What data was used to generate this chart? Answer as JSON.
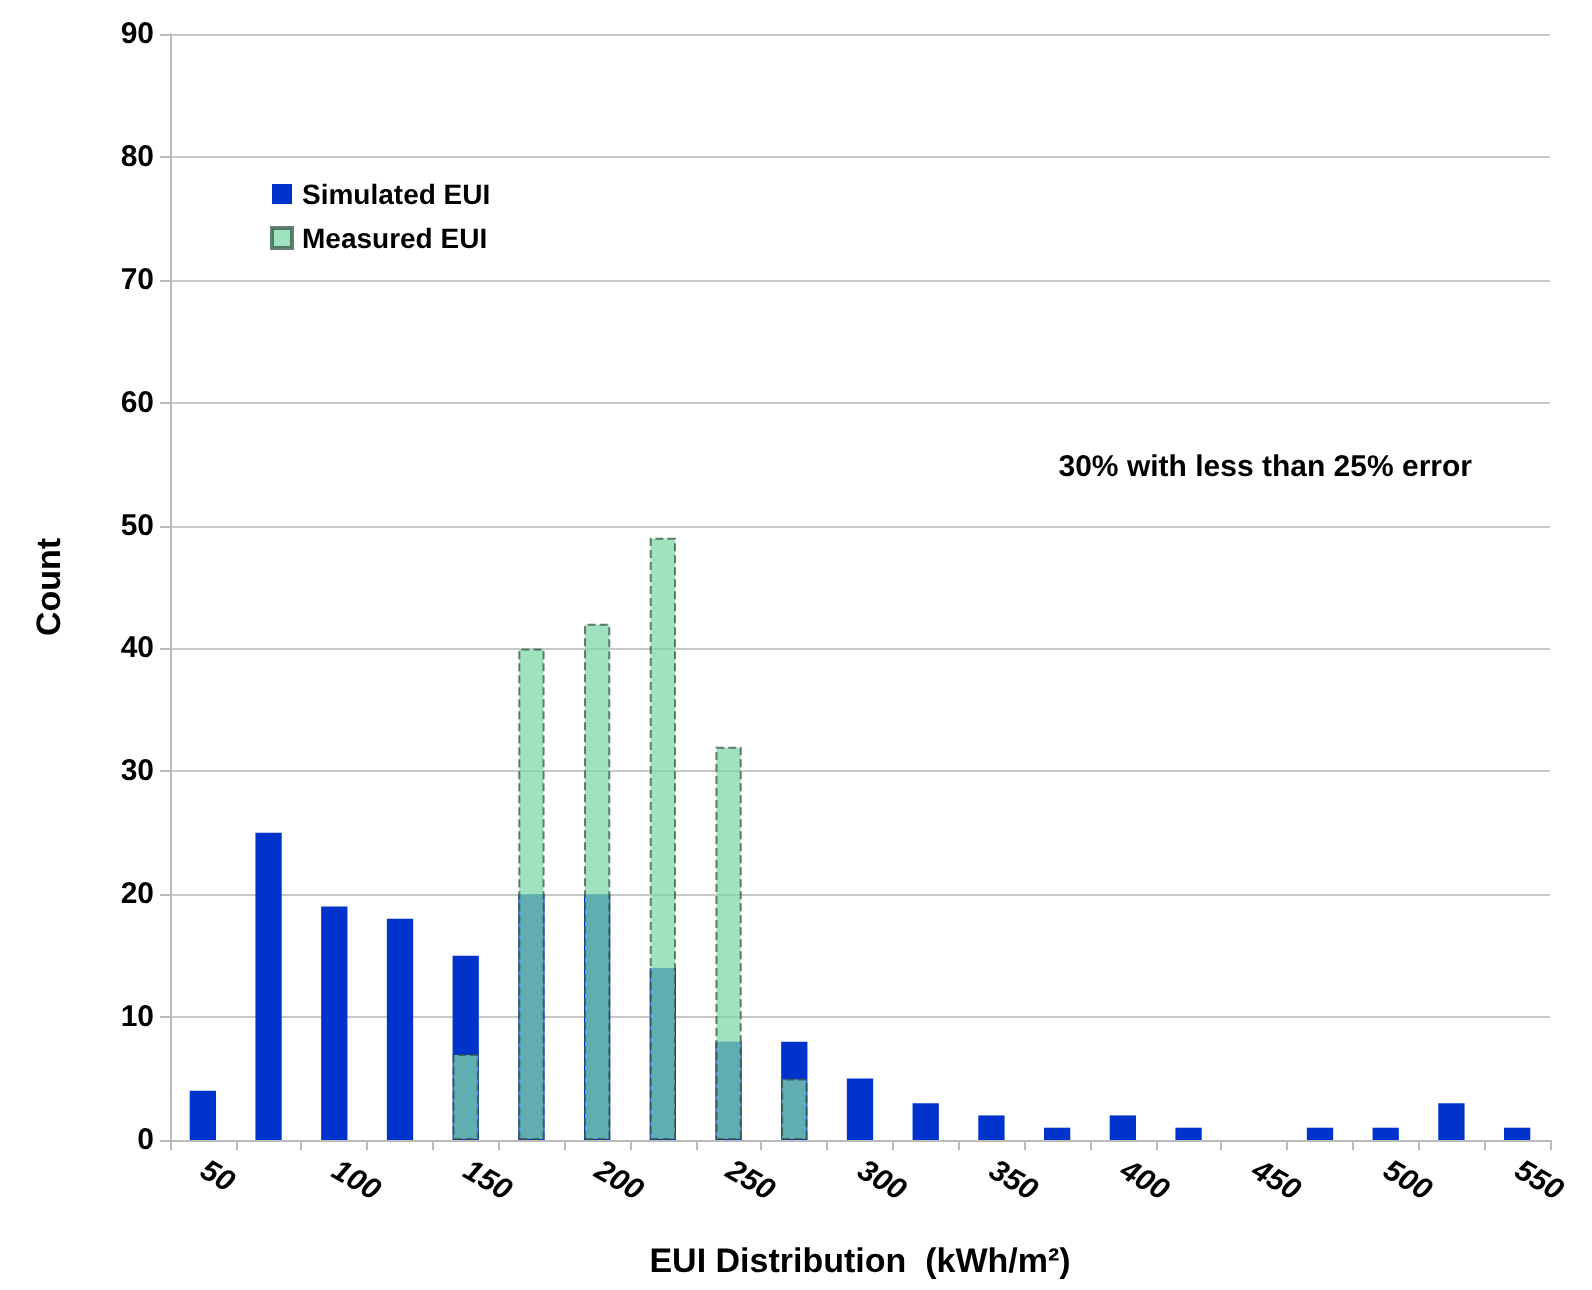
{
  "chart_data": {
    "type": "bar",
    "xlabel": "EUI Distribution  (kWh/m²)",
    "ylabel": "Count",
    "categories": [
      "50",
      null,
      "100",
      null,
      "150",
      null,
      "200",
      null,
      "250",
      null,
      "300",
      null,
      "350",
      null,
      "400",
      null,
      "450",
      null,
      "500",
      null,
      "550"
    ],
    "series": [
      {
        "name": "Simulated EUI",
        "color": "#0033cc",
        "values": [
          4,
          25,
          19,
          18,
          15,
          20,
          20,
          14,
          8,
          8,
          5,
          3,
          2,
          1,
          2,
          1,
          0,
          1,
          1,
          3,
          1
        ]
      },
      {
        "name": "Measured EUI",
        "color": "#80d8a8",
        "values": [
          null,
          null,
          null,
          null,
          7,
          40,
          42,
          49,
          32,
          5,
          null,
          null,
          null,
          null,
          null,
          null,
          null,
          null,
          null,
          null,
          null
        ]
      }
    ],
    "ylim": [
      0,
      90
    ],
    "yticks": [
      0,
      10,
      20,
      30,
      40,
      50,
      60,
      70,
      80,
      90
    ],
    "grid": "y",
    "legend": "top left",
    "annotations": [
      "30% with less than 25% error"
    ]
  }
}
